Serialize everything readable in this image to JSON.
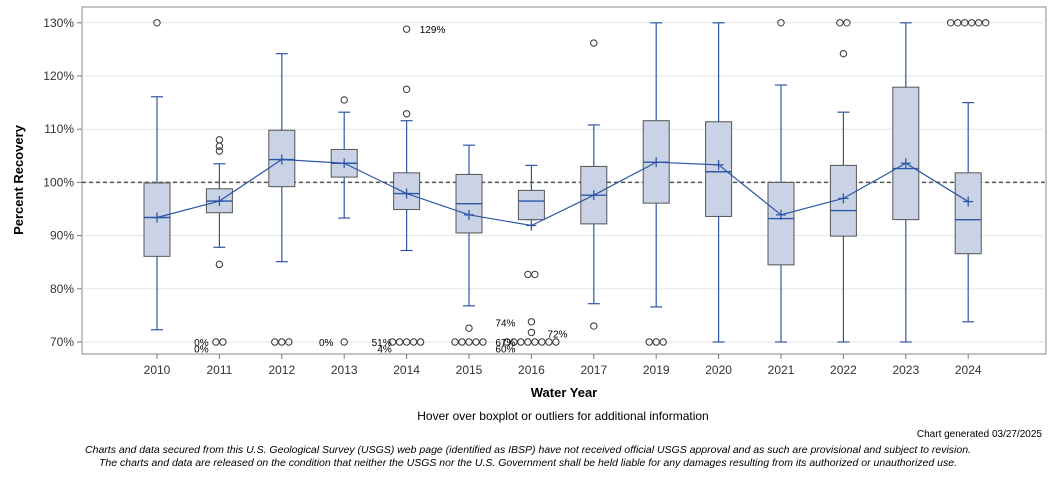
{
  "chart_data": {
    "type": "boxplot",
    "xlabel": "Water Year",
    "ylabel": "Percent Recovery",
    "ylim": [
      68,
      132
    ],
    "yticks": [
      70,
      80,
      90,
      100,
      110,
      120,
      130
    ],
    "ytick_labels": [
      "70%",
      "80%",
      "90%",
      "100%",
      "110%",
      "120%",
      "130%"
    ],
    "reference_line": 100,
    "categories": [
      "2010",
      "2011",
      "2012",
      "2013",
      "2014",
      "2015",
      "2016",
      "2017",
      "2019",
      "2020",
      "2021",
      "2022",
      "2023",
      "2024"
    ],
    "boxes": [
      {
        "year": "2010",
        "whisker_low": 72.3,
        "q1": 86.1,
        "median": 93.4,
        "q3": 99.9,
        "whisker_high": 116.1,
        "mean": 93.4,
        "outliers": [
          130
        ]
      },
      {
        "year": "2011",
        "whisker_low": 87.8,
        "q1": 94.3,
        "median": 96.5,
        "q3": 98.8,
        "whisker_high": 103.5,
        "mean": 96.5,
        "outliers": [
          108.0,
          106.8,
          105.9,
          84.6,
          70,
          70
        ]
      },
      {
        "year": "2012",
        "whisker_low": 85.1,
        "q1": 99.2,
        "median": 104.3,
        "q3": 109.8,
        "whisker_high": 124.2,
        "mean": 104.3,
        "outliers": [
          70,
          70,
          70
        ]
      },
      {
        "year": "2013",
        "whisker_low": 93.3,
        "q1": 101.0,
        "median": 103.6,
        "q3": 106.2,
        "whisker_high": 113.2,
        "mean": 103.6,
        "outliers": [
          115.5,
          70
        ]
      },
      {
        "year": "2014",
        "whisker_low": 87.2,
        "q1": 94.9,
        "median": 97.9,
        "q3": 101.8,
        "whisker_high": 111.6,
        "mean": 97.9,
        "outliers": [
          128.8,
          117.5,
          112.9,
          70,
          70,
          70,
          70,
          70
        ]
      },
      {
        "year": "2015",
        "whisker_low": 76.8,
        "q1": 90.5,
        "median": 96.0,
        "q3": 101.5,
        "whisker_high": 107.0,
        "mean": 93.9,
        "outliers": [
          72.6,
          70,
          70,
          70,
          70,
          70
        ]
      },
      {
        "year": "2016",
        "whisker_low": 93.0,
        "q1": 93.0,
        "median": 96.5,
        "q3": 98.5,
        "whisker_high": 103.2,
        "mean": 91.9,
        "outliers": [
          82.7,
          82.7,
          73.8,
          71.8,
          70,
          70,
          70,
          70,
          70,
          70,
          70,
          70
        ]
      },
      {
        "year": "2017",
        "whisker_low": 77.2,
        "q1": 92.2,
        "median": 97.6,
        "q3": 103.0,
        "whisker_high": 110.8,
        "mean": 97.6,
        "outliers": [
          126.2,
          73.0
        ]
      },
      {
        "year": "2019",
        "whisker_low": 76.6,
        "q1": 96.1,
        "median": 103.8,
        "q3": 111.6,
        "whisker_high": 130.0,
        "mean": 103.8,
        "outliers": [
          70,
          70,
          70
        ]
      },
      {
        "year": "2020",
        "whisker_low": 70.0,
        "q1": 93.6,
        "median": 102.0,
        "q3": 111.4,
        "whisker_high": 130.0,
        "mean": 103.3,
        "outliers": []
      },
      {
        "year": "2021",
        "whisker_low": 70.0,
        "q1": 84.5,
        "median": 93.2,
        "q3": 100.0,
        "whisker_high": 118.3,
        "mean": 93.9,
        "outliers": [
          130
        ]
      },
      {
        "year": "2022",
        "whisker_low": 70.0,
        "q1": 89.9,
        "median": 94.7,
        "q3": 103.2,
        "whisker_high": 113.2,
        "mean": 97.0,
        "outliers": [
          130,
          130,
          124.2
        ]
      },
      {
        "year": "2023",
        "whisker_low": 70.0,
        "q1": 93.0,
        "median": 102.6,
        "q3": 117.9,
        "whisker_high": 130.0,
        "mean": 103.6,
        "outliers": []
      },
      {
        "year": "2024",
        "whisker_low": 73.8,
        "q1": 86.6,
        "median": 93.0,
        "q3": 101.8,
        "whisker_high": 115.0,
        "mean": 96.4,
        "outliers": [
          130,
          130,
          130,
          130,
          130,
          130
        ]
      }
    ],
    "annotations": [
      {
        "text": "129%",
        "year": "2014",
        "y": 128.8
      },
      {
        "text": "0%",
        "year": "2011",
        "y": 70
      },
      {
        "text": "0%",
        "year": "2011",
        "y": 68.8
      },
      {
        "text": "0%",
        "year": "2013",
        "y": 70
      },
      {
        "text": "51%",
        "year": "2014",
        "y": 70
      },
      {
        "text": "4%",
        "year": "2014",
        "y": 68.8
      },
      {
        "text": "74%",
        "year": "2016",
        "y": 73.7
      },
      {
        "text": "72%",
        "year": "2016",
        "y": 71.6
      },
      {
        "text": "67%",
        "year": "2016",
        "y": 70
      },
      {
        "text": "60%",
        "year": "2016",
        "y": 68.8
      }
    ],
    "colors": {
      "box_fill": "#c9d3e5",
      "box_edge": "#555555",
      "median_line": "#2f57a6",
      "whisker": "#2f57a6",
      "mean_line": "#2f57a6",
      "ref_line": "#555555"
    }
  },
  "footer": {
    "hover_note": "Hover over boxplot or outliers for additional information",
    "generated": "Chart generated 03/27/2025",
    "disclaimer_line1": "Charts and data secured from this U.S. Geological Survey (USGS) web page (identified as IBSP) have not received official USGS approval and as such are provisional and subject to revision.",
    "disclaimer_line2": "The charts and data are released on the condition that neither the USGS nor the U.S. Government shall be held liable for any damages resulting from its authorized or unauthorized use."
  }
}
